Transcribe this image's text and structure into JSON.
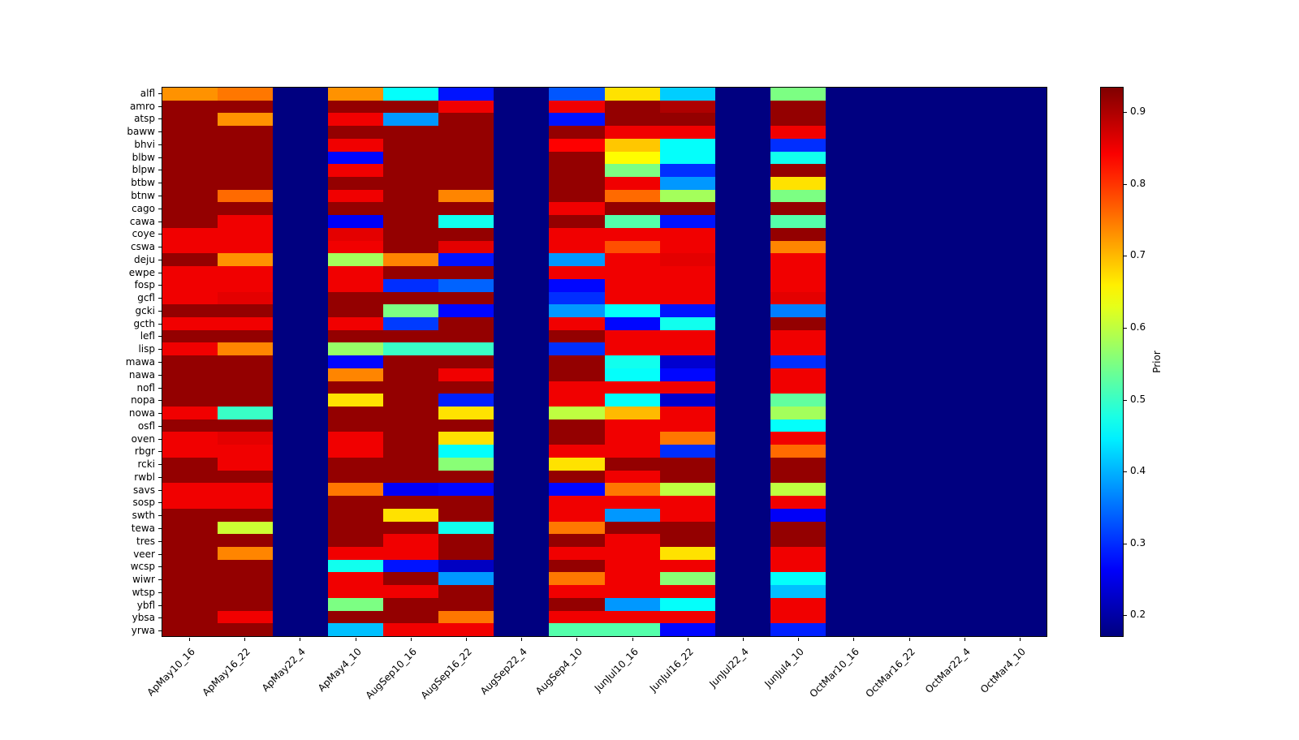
{
  "chart_data": {
    "type": "heatmap",
    "title": "",
    "xlabel": "",
    "ylabel": "",
    "colormap": "jet",
    "vmin": 0.17,
    "vmax": 0.935,
    "colorbar_label": "Prior",
    "colorbar_ticks": [
      0.2,
      0.3,
      0.4,
      0.5,
      0.6,
      0.7,
      0.8,
      0.9
    ],
    "legend": "none",
    "grid": false,
    "x_categories": [
      "ApMay10_16",
      "ApMay16_22",
      "ApMay22_4",
      "ApMay4_10",
      "AugSep10_16",
      "AugSep16_22",
      "AugSep22_4",
      "AugSep4_10",
      "JunJul10_16",
      "JunJul16_22",
      "JunJul22_4",
      "JunJul4_10",
      "OctMar10_16",
      "OctMar16_22",
      "OctMar22_4",
      "OctMar4_10"
    ],
    "y_categories": [
      "alfl",
      "amro",
      "atsp",
      "baww",
      "bhvi",
      "blbw",
      "blpw",
      "btbw",
      "btnw",
      "cago",
      "cawa",
      "coye",
      "cswa",
      "deju",
      "ewpe",
      "fosp",
      "gcfl",
      "gcki",
      "gcth",
      "lefl",
      "lisp",
      "mawa",
      "nawa",
      "nofl",
      "nopa",
      "nowa",
      "osfl",
      "oven",
      "rbgr",
      "rcki",
      "rwbl",
      "savs",
      "sosp",
      "swth",
      "tewa",
      "tres",
      "veer",
      "wcsp",
      "wiwr",
      "wtsp",
      "ybfl",
      "ybsa",
      "yrwa"
    ],
    "values": [
      [
        0.73,
        0.75,
        0.17,
        0.73,
        0.46,
        0.28,
        0.17,
        0.33,
        0.67,
        0.42,
        0.17,
        0.55,
        0.17,
        0.17,
        0.17,
        0.17
      ],
      [
        0.92,
        0.92,
        0.17,
        0.92,
        0.92,
        0.85,
        0.17,
        0.85,
        0.92,
        0.9,
        0.17,
        0.92,
        0.17,
        0.17,
        0.17,
        0.17
      ],
      [
        0.92,
        0.73,
        0.17,
        0.85,
        0.38,
        0.92,
        0.17,
        0.28,
        0.92,
        0.92,
        0.17,
        0.92,
        0.17,
        0.17,
        0.17,
        0.17
      ],
      [
        0.92,
        0.92,
        0.17,
        0.92,
        0.92,
        0.92,
        0.17,
        0.92,
        0.85,
        0.85,
        0.17,
        0.85,
        0.17,
        0.17,
        0.17,
        0.17
      ],
      [
        0.92,
        0.92,
        0.17,
        0.85,
        0.92,
        0.92,
        0.17,
        0.84,
        0.69,
        0.46,
        0.17,
        0.3,
        0.17,
        0.17,
        0.17,
        0.17
      ],
      [
        0.92,
        0.92,
        0.17,
        0.27,
        0.92,
        0.92,
        0.17,
        0.92,
        0.65,
        0.46,
        0.17,
        0.47,
        0.17,
        0.17,
        0.17,
        0.17
      ],
      [
        0.92,
        0.92,
        0.17,
        0.85,
        0.92,
        0.92,
        0.17,
        0.92,
        0.55,
        0.3,
        0.17,
        0.92,
        0.17,
        0.17,
        0.17,
        0.17
      ],
      [
        0.92,
        0.92,
        0.17,
        0.92,
        0.92,
        0.92,
        0.17,
        0.92,
        0.85,
        0.38,
        0.17,
        0.67,
        0.17,
        0.17,
        0.17,
        0.17
      ],
      [
        0.92,
        0.76,
        0.17,
        0.85,
        0.92,
        0.74,
        0.17,
        0.92,
        0.76,
        0.58,
        0.17,
        0.55,
        0.17,
        0.17,
        0.17,
        0.17
      ],
      [
        0.92,
        0.92,
        0.17,
        0.92,
        0.92,
        0.92,
        0.17,
        0.85,
        0.92,
        0.92,
        0.17,
        0.92,
        0.17,
        0.17,
        0.17,
        0.17
      ],
      [
        0.92,
        0.85,
        0.17,
        0.26,
        0.92,
        0.47,
        0.17,
        0.92,
        0.52,
        0.28,
        0.17,
        0.52,
        0.17,
        0.17,
        0.17,
        0.17
      ],
      [
        0.85,
        0.85,
        0.17,
        0.86,
        0.92,
        0.92,
        0.17,
        0.85,
        0.85,
        0.85,
        0.17,
        0.92,
        0.17,
        0.17,
        0.17,
        0.17
      ],
      [
        0.85,
        0.85,
        0.17,
        0.85,
        0.92,
        0.86,
        0.17,
        0.85,
        0.78,
        0.85,
        0.17,
        0.74,
        0.17,
        0.17,
        0.17,
        0.17
      ],
      [
        0.92,
        0.73,
        0.17,
        0.58,
        0.74,
        0.28,
        0.17,
        0.38,
        0.85,
        0.86,
        0.17,
        0.85,
        0.17,
        0.17,
        0.17,
        0.17
      ],
      [
        0.85,
        0.85,
        0.17,
        0.85,
        0.92,
        0.92,
        0.17,
        0.85,
        0.85,
        0.85,
        0.17,
        0.85,
        0.17,
        0.17,
        0.17,
        0.17
      ],
      [
        0.85,
        0.85,
        0.17,
        0.85,
        0.3,
        0.34,
        0.17,
        0.27,
        0.85,
        0.85,
        0.17,
        0.85,
        0.17,
        0.17,
        0.17,
        0.17
      ],
      [
        0.85,
        0.86,
        0.17,
        0.92,
        0.92,
        0.92,
        0.17,
        0.3,
        0.85,
        0.85,
        0.17,
        0.86,
        0.17,
        0.17,
        0.17,
        0.17
      ],
      [
        0.92,
        0.92,
        0.17,
        0.92,
        0.55,
        0.27,
        0.17,
        0.38,
        0.46,
        0.28,
        0.17,
        0.36,
        0.17,
        0.17,
        0.17,
        0.17
      ],
      [
        0.85,
        0.85,
        0.17,
        0.85,
        0.31,
        0.92,
        0.17,
        0.85,
        0.27,
        0.47,
        0.17,
        0.92,
        0.17,
        0.17,
        0.17,
        0.17
      ],
      [
        0.92,
        0.92,
        0.17,
        0.92,
        0.92,
        0.92,
        0.17,
        0.92,
        0.85,
        0.85,
        0.17,
        0.85,
        0.17,
        0.17,
        0.17,
        0.17
      ],
      [
        0.85,
        0.74,
        0.17,
        0.57,
        0.5,
        0.5,
        0.17,
        0.3,
        0.85,
        0.85,
        0.17,
        0.85,
        0.17,
        0.17,
        0.17,
        0.17
      ],
      [
        0.92,
        0.92,
        0.17,
        0.27,
        0.92,
        0.92,
        0.17,
        0.92,
        0.47,
        0.23,
        0.17,
        0.3,
        0.17,
        0.17,
        0.17,
        0.17
      ],
      [
        0.92,
        0.92,
        0.17,
        0.74,
        0.92,
        0.85,
        0.17,
        0.92,
        0.46,
        0.27,
        0.17,
        0.85,
        0.17,
        0.17,
        0.17,
        0.17
      ],
      [
        0.92,
        0.92,
        0.17,
        0.92,
        0.92,
        0.92,
        0.17,
        0.85,
        0.85,
        0.85,
        0.17,
        0.85,
        0.17,
        0.17,
        0.17,
        0.17
      ],
      [
        0.92,
        0.92,
        0.17,
        0.67,
        0.92,
        0.29,
        0.17,
        0.85,
        0.46,
        0.23,
        0.17,
        0.53,
        0.17,
        0.17,
        0.17,
        0.17
      ],
      [
        0.85,
        0.5,
        0.17,
        0.92,
        0.92,
        0.67,
        0.17,
        0.6,
        0.7,
        0.85,
        0.17,
        0.58,
        0.17,
        0.17,
        0.17,
        0.17
      ],
      [
        0.92,
        0.92,
        0.17,
        0.92,
        0.92,
        0.92,
        0.17,
        0.92,
        0.85,
        0.85,
        0.17,
        0.46,
        0.17,
        0.17,
        0.17,
        0.17
      ],
      [
        0.85,
        0.86,
        0.17,
        0.85,
        0.92,
        0.67,
        0.17,
        0.92,
        0.85,
        0.75,
        0.17,
        0.85,
        0.17,
        0.17,
        0.17,
        0.17
      ],
      [
        0.85,
        0.85,
        0.17,
        0.85,
        0.92,
        0.46,
        0.17,
        0.85,
        0.85,
        0.3,
        0.17,
        0.76,
        0.17,
        0.17,
        0.17,
        0.17
      ],
      [
        0.92,
        0.85,
        0.17,
        0.92,
        0.92,
        0.56,
        0.17,
        0.67,
        0.92,
        0.92,
        0.17,
        0.92,
        0.17,
        0.17,
        0.17,
        0.17
      ],
      [
        0.92,
        0.92,
        0.17,
        0.92,
        0.92,
        0.92,
        0.17,
        0.92,
        0.85,
        0.92,
        0.17,
        0.92,
        0.17,
        0.17,
        0.17,
        0.17
      ],
      [
        0.85,
        0.85,
        0.17,
        0.75,
        0.26,
        0.27,
        0.17,
        0.27,
        0.75,
        0.6,
        0.17,
        0.6,
        0.17,
        0.17,
        0.17,
        0.17
      ],
      [
        0.85,
        0.85,
        0.17,
        0.92,
        0.92,
        0.92,
        0.17,
        0.85,
        0.85,
        0.85,
        0.17,
        0.85,
        0.17,
        0.17,
        0.17,
        0.17
      ],
      [
        0.92,
        0.92,
        0.17,
        0.92,
        0.67,
        0.92,
        0.17,
        0.85,
        0.38,
        0.85,
        0.17,
        0.26,
        0.17,
        0.17,
        0.17,
        0.17
      ],
      [
        0.92,
        0.61,
        0.17,
        0.92,
        0.92,
        0.47,
        0.17,
        0.75,
        0.92,
        0.92,
        0.17,
        0.92,
        0.17,
        0.17,
        0.17,
        0.17
      ],
      [
        0.92,
        0.92,
        0.17,
        0.92,
        0.85,
        0.92,
        0.17,
        0.92,
        0.85,
        0.92,
        0.17,
        0.92,
        0.17,
        0.17,
        0.17,
        0.17
      ],
      [
        0.92,
        0.74,
        0.17,
        0.85,
        0.85,
        0.92,
        0.17,
        0.85,
        0.85,
        0.67,
        0.17,
        0.85,
        0.17,
        0.17,
        0.17,
        0.17
      ],
      [
        0.92,
        0.92,
        0.17,
        0.47,
        0.28,
        0.22,
        0.17,
        0.92,
        0.85,
        0.85,
        0.17,
        0.85,
        0.17,
        0.17,
        0.17,
        0.17
      ],
      [
        0.92,
        0.92,
        0.17,
        0.85,
        0.92,
        0.38,
        0.17,
        0.75,
        0.85,
        0.56,
        0.17,
        0.46,
        0.17,
        0.17,
        0.17,
        0.17
      ],
      [
        0.92,
        0.92,
        0.17,
        0.85,
        0.85,
        0.92,
        0.17,
        0.85,
        0.85,
        0.85,
        0.17,
        0.41,
        0.17,
        0.17,
        0.17,
        0.17
      ],
      [
        0.92,
        0.92,
        0.17,
        0.55,
        0.92,
        0.92,
        0.17,
        0.92,
        0.38,
        0.46,
        0.17,
        0.85,
        0.17,
        0.17,
        0.17,
        0.17
      ],
      [
        0.92,
        0.85,
        0.17,
        0.92,
        0.92,
        0.75,
        0.17,
        0.85,
        0.85,
        0.85,
        0.17,
        0.85,
        0.17,
        0.17,
        0.17,
        0.17
      ],
      [
        0.92,
        0.92,
        0.17,
        0.41,
        0.85,
        0.85,
        0.17,
        0.52,
        0.52,
        0.27,
        0.17,
        0.29,
        0.17,
        0.17,
        0.17,
        0.17
      ]
    ]
  }
}
